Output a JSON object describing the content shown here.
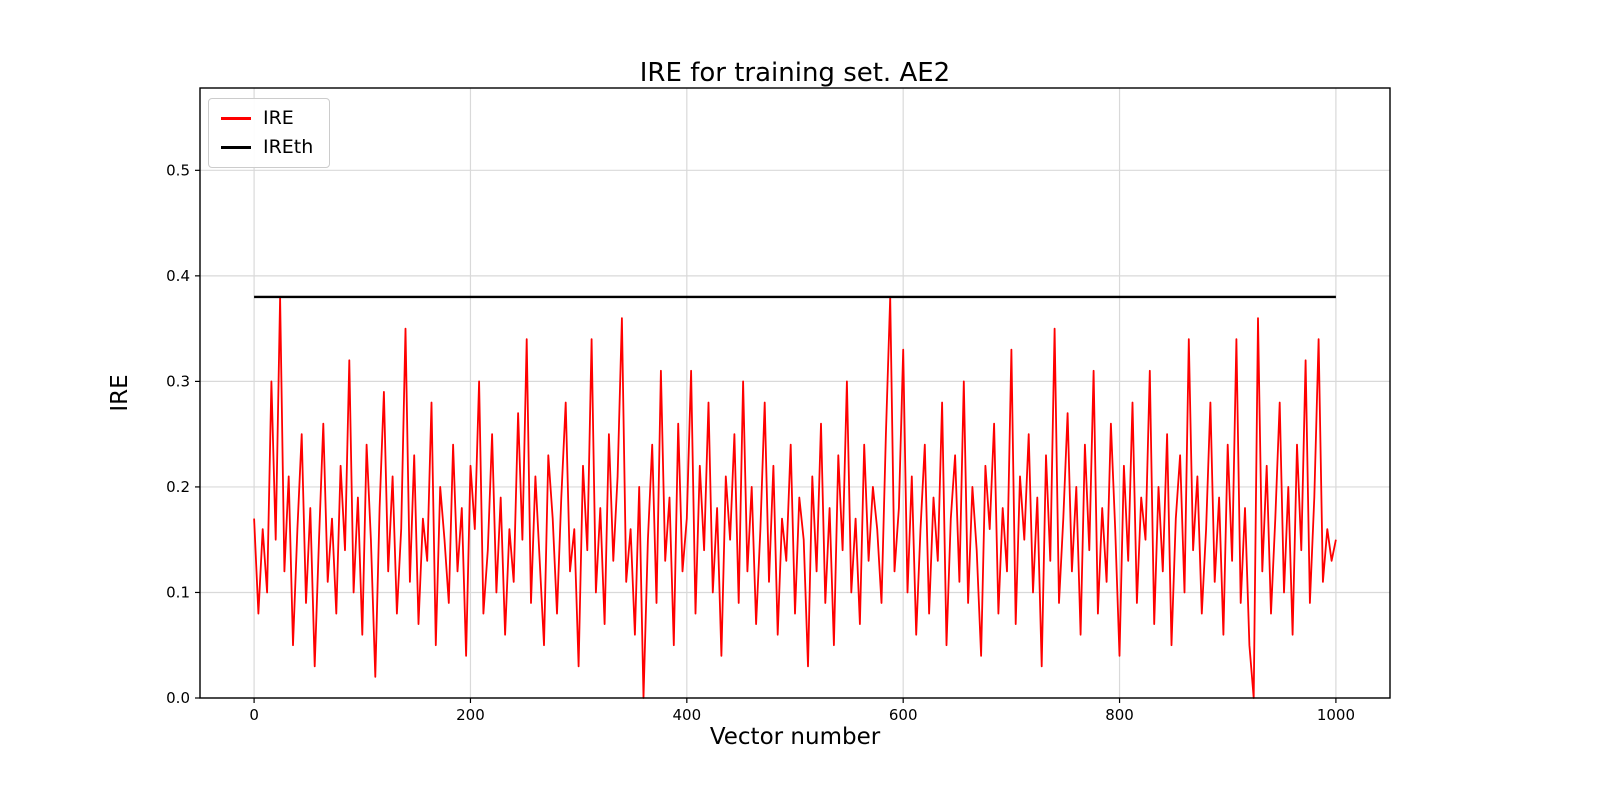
{
  "figure": {
    "title": "IRE for training set. AE2",
    "xlabel": "Vector number",
    "ylabel": "IRE"
  },
  "legend": {
    "position": "upper left",
    "items": [
      {
        "label": "IRE",
        "color": "#ff0000"
      },
      {
        "label": "IREth",
        "color": "#000000"
      }
    ]
  },
  "chart_data": {
    "type": "line",
    "title": "IRE for training set. AE2",
    "xlabel": "Vector number",
    "ylabel": "IRE",
    "xlim": [
      -50,
      1050
    ],
    "ylim": [
      0,
      0.578
    ],
    "grid": true,
    "x_ticks": [
      0,
      200,
      400,
      600,
      800,
      1000
    ],
    "x_tick_labels": [
      "0",
      "200",
      "400",
      "600",
      "800",
      "1000"
    ],
    "y_ticks": [
      0.0,
      0.1,
      0.2,
      0.3,
      0.4,
      0.5
    ],
    "y_tick_labels": [
      "0.0",
      "0.1",
      "0.2",
      "0.3",
      "0.4",
      "0.5"
    ],
    "grid_color": "#d9d9d9",
    "series": [
      {
        "name": "IRE",
        "kind": "noisy-line",
        "color": "#ff0000",
        "x_start": 0,
        "x_step": 4,
        "values": [
          0.17,
          0.08,
          0.16,
          0.1,
          0.3,
          0.15,
          0.38,
          0.12,
          0.21,
          0.05,
          0.16,
          0.25,
          0.09,
          0.18,
          0.03,
          0.15,
          0.26,
          0.11,
          0.17,
          0.08,
          0.22,
          0.14,
          0.32,
          0.1,
          0.19,
          0.06,
          0.24,
          0.15,
          0.02,
          0.18,
          0.29,
          0.12,
          0.21,
          0.08,
          0.16,
          0.35,
          0.11,
          0.23,
          0.07,
          0.17,
          0.13,
          0.28,
          0.05,
          0.2,
          0.15,
          0.09,
          0.24,
          0.12,
          0.18,
          0.04,
          0.22,
          0.16,
          0.3,
          0.08,
          0.14,
          0.25,
          0.1,
          0.19,
          0.06,
          0.16,
          0.11,
          0.27,
          0.15,
          0.34,
          0.09,
          0.21,
          0.13,
          0.05,
          0.23,
          0.17,
          0.08,
          0.19,
          0.28,
          0.12,
          0.16,
          0.03,
          0.22,
          0.14,
          0.34,
          0.1,
          0.18,
          0.07,
          0.25,
          0.13,
          0.21,
          0.36,
          0.11,
          0.16,
          0.06,
          0.2,
          0.0,
          0.15,
          0.24,
          0.09,
          0.31,
          0.13,
          0.19,
          0.05,
          0.26,
          0.12,
          0.17,
          0.31,
          0.08,
          0.22,
          0.14,
          0.28,
          0.1,
          0.18,
          0.04,
          0.21,
          0.15,
          0.25,
          0.09,
          0.3,
          0.12,
          0.2,
          0.07,
          0.16,
          0.28,
          0.11,
          0.22,
          0.06,
          0.17,
          0.13,
          0.24,
          0.08,
          0.19,
          0.15,
          0.03,
          0.21,
          0.12,
          0.26,
          0.09,
          0.18,
          0.05,
          0.23,
          0.14,
          0.3,
          0.1,
          0.17,
          0.07,
          0.24,
          0.13,
          0.2,
          0.16,
          0.09,
          0.25,
          0.38,
          0.12,
          0.18,
          0.33,
          0.1,
          0.21,
          0.06,
          0.16,
          0.24,
          0.08,
          0.19,
          0.13,
          0.28,
          0.05,
          0.17,
          0.23,
          0.11,
          0.3,
          0.09,
          0.2,
          0.14,
          0.04,
          0.22,
          0.16,
          0.26,
          0.08,
          0.18,
          0.12,
          0.33,
          0.07,
          0.21,
          0.15,
          0.25,
          0.1,
          0.19,
          0.03,
          0.23,
          0.13,
          0.35,
          0.09,
          0.17,
          0.27,
          0.12,
          0.2,
          0.06,
          0.24,
          0.14,
          0.31,
          0.08,
          0.18,
          0.11,
          0.26,
          0.16,
          0.04,
          0.22,
          0.13,
          0.28,
          0.09,
          0.19,
          0.15,
          0.31,
          0.07,
          0.2,
          0.12,
          0.25,
          0.05,
          0.17,
          0.23,
          0.1,
          0.34,
          0.14,
          0.21,
          0.08,
          0.16,
          0.28,
          0.11,
          0.19,
          0.06,
          0.24,
          0.13,
          0.34,
          0.09,
          0.18,
          0.05,
          0.0,
          0.36,
          0.12,
          0.22,
          0.08,
          0.17,
          0.28,
          0.1,
          0.2,
          0.06,
          0.24,
          0.14,
          0.32,
          0.09,
          0.19,
          0.34,
          0.11,
          0.16,
          0.13,
          0.15
        ]
      },
      {
        "name": "IREth",
        "kind": "hline",
        "color": "#000000",
        "y": 0.38,
        "x_range": [
          0,
          1000
        ]
      }
    ]
  }
}
